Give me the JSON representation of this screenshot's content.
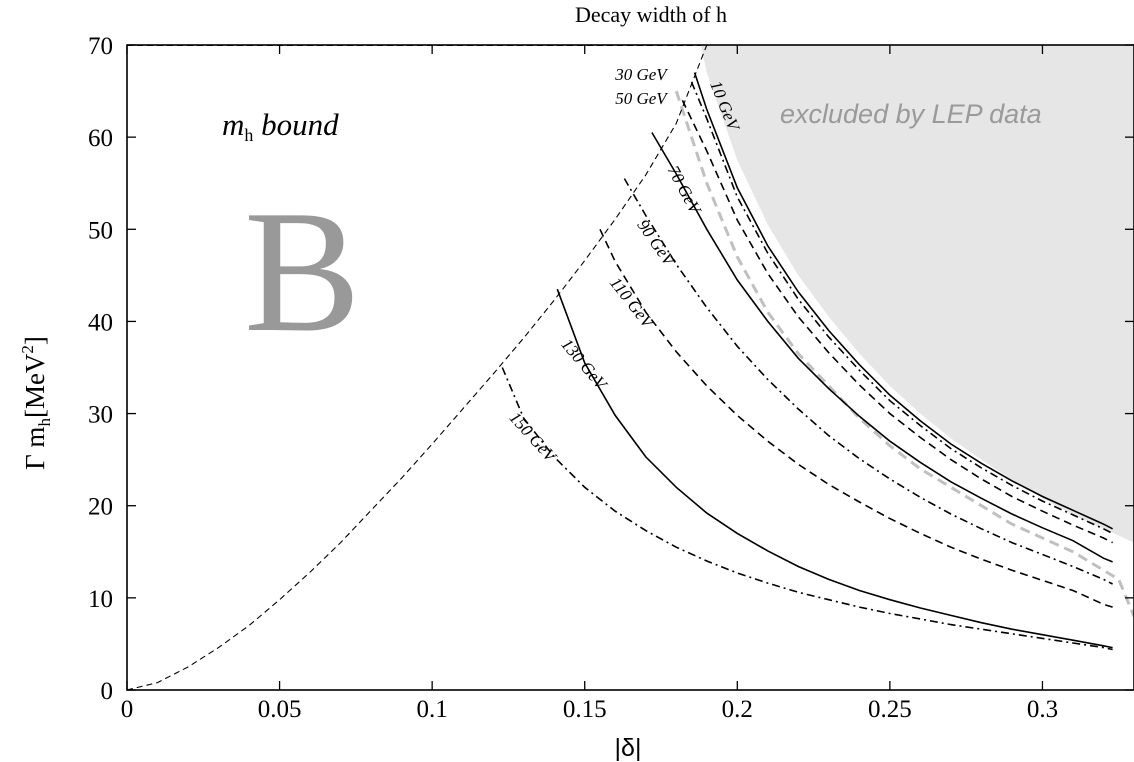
{
  "chart_data": {
    "type": "line",
    "title": "Decay width of h",
    "xlabel": "|δ|",
    "ylabel_main": "Γ m",
    "ylabel_sub": "h",
    "ylabel_unit": "[MeV",
    "ylabel_exp": "2",
    "ylabel_close": "]",
    "xlim": [
      0,
      0.33
    ],
    "ylim": [
      0,
      70
    ],
    "x_ticks": [
      0,
      0.05,
      0.1,
      0.15,
      0.2,
      0.25,
      0.3
    ],
    "x_tick_labels": [
      "0",
      "0.05",
      "0.1",
      "0.15",
      "0.2",
      "0.25",
      "0.3"
    ],
    "y_ticks": [
      0,
      10,
      20,
      30,
      40,
      50,
      60,
      70
    ],
    "y_tick_labels": [
      "0",
      "10",
      "20",
      "30",
      "40",
      "50",
      "60",
      "70"
    ],
    "grid": false,
    "legend": "none",
    "annotations": {
      "bound_main": "m",
      "bound_sub": "h",
      "bound_rest": " bound",
      "region_letter": "B",
      "excluded_text": "excluded by LEP data"
    },
    "colors": {
      "excluded_fill": "#e6e6e6",
      "excluded_text": "#9a9a9a",
      "region_letter": "#999999",
      "lep_boundary": "#c0c0c0"
    },
    "excluded_region": {
      "x": [
        0.188,
        0.19,
        0.2,
        0.21,
        0.22,
        0.23,
        0.24,
        0.25,
        0.26,
        0.27,
        0.28,
        0.29,
        0.3,
        0.31,
        0.32,
        0.33,
        0.33
      ],
      "y": [
        70,
        67,
        57.5,
        50.5,
        45,
        40.5,
        36.5,
        33,
        30,
        27.3,
        25,
        22.8,
        20.8,
        19,
        17.5,
        16,
        70
      ]
    },
    "lep_boundary": {
      "x": [
        0.18,
        0.19,
        0.2,
        0.21,
        0.22,
        0.23,
        0.24,
        0.25,
        0.26,
        0.27,
        0.28,
        0.29,
        0.3,
        0.31,
        0.32,
        0.325,
        0.33
      ],
      "y": [
        65,
        55,
        47,
        41,
        36.5,
        33,
        29.5,
        26.5,
        24,
        22,
        20,
        18,
        16.5,
        15,
        13,
        12,
        8
      ]
    },
    "envelope": {
      "x": [
        0,
        0.01,
        0.02,
        0.03,
        0.04,
        0.05,
        0.06,
        0.07,
        0.08,
        0.09,
        0.1,
        0.11,
        0.12,
        0.13,
        0.14,
        0.15,
        0.16,
        0.17,
        0.18,
        0.19
      ],
      "y": [
        0,
        0.8,
        2.5,
        4.6,
        7,
        9.8,
        12.8,
        16,
        19.5,
        23,
        26.7,
        30.5,
        34.3,
        38.2,
        42.3,
        46.6,
        51.1,
        55.9,
        61.5,
        70
      ]
    },
    "series": [
      {
        "label": "10 GeV",
        "style": "solid",
        "label_x": 0.191,
        "label_y": 65.8,
        "label_rot": 68,
        "x": [
          0.186,
          0.19,
          0.2,
          0.21,
          0.22,
          0.23,
          0.24,
          0.25,
          0.26,
          0.27,
          0.28,
          0.29,
          0.3,
          0.31,
          0.32,
          0.323
        ],
        "y": [
          67,
          63,
          54.5,
          48.2,
          43.2,
          39,
          35.3,
          32,
          29.2,
          26.7,
          24.6,
          22.7,
          21,
          19.5,
          18,
          17.5
        ]
      },
      {
        "label": "30 GeV",
        "style": "dashdot",
        "label_x": 0.16,
        "label_y": 66.2,
        "label_rot": 0,
        "x": [
          0.185,
          0.19,
          0.2,
          0.21,
          0.22,
          0.23,
          0.24,
          0.25,
          0.26,
          0.27,
          0.28,
          0.29,
          0.3,
          0.31,
          0.32,
          0.323
        ],
        "y": [
          66,
          62,
          53.5,
          47.4,
          42.4,
          38.3,
          34.7,
          31.4,
          28.7,
          26.2,
          24.1,
          22.2,
          20.5,
          19,
          17.5,
          17
        ]
      },
      {
        "label": "50 GeV",
        "style": "dashed",
        "label_x": 0.16,
        "label_y": 63.6,
        "label_rot": 0,
        "x": [
          0.182,
          0.19,
          0.2,
          0.21,
          0.22,
          0.23,
          0.24,
          0.25,
          0.26,
          0.27,
          0.28,
          0.29,
          0.3,
          0.31,
          0.32,
          0.323
        ],
        "y": [
          64,
          58.5,
          51,
          45.2,
          40.5,
          36.6,
          33.1,
          30,
          27.4,
          25,
          22.9,
          21,
          19.4,
          17.9,
          16.5,
          16
        ]
      },
      {
        "label": "70 GeV",
        "style": "solid",
        "label_x": 0.177,
        "label_y": 56.5,
        "label_rot": 62,
        "x": [
          0.172,
          0.18,
          0.19,
          0.2,
          0.21,
          0.22,
          0.23,
          0.24,
          0.25,
          0.26,
          0.27,
          0.28,
          0.29,
          0.3,
          0.31,
          0.32,
          0.323
        ],
        "y": [
          60.5,
          56,
          50,
          44.5,
          40,
          36,
          32.7,
          29.7,
          27,
          24.7,
          22.6,
          20.8,
          19.1,
          17.6,
          16.2,
          14.3,
          13.9
        ]
      },
      {
        "label": "90 GeV",
        "style": "dashdot",
        "label_x": 0.167,
        "label_y": 50.5,
        "label_rot": 55,
        "x": [
          0.163,
          0.17,
          0.18,
          0.19,
          0.2,
          0.21,
          0.22,
          0.23,
          0.24,
          0.25,
          0.26,
          0.27,
          0.28,
          0.29,
          0.3,
          0.31,
          0.32,
          0.323
        ],
        "y": [
          55.5,
          51.5,
          46.2,
          41.5,
          37.3,
          33.7,
          30.5,
          27.6,
          25.1,
          22.9,
          20.9,
          19.1,
          17.5,
          16,
          14.7,
          13.4,
          12,
          11.5
        ]
      },
      {
        "label": "110 GeV",
        "style": "dashed",
        "label_x": 0.158,
        "label_y": 44.2,
        "label_rot": 52,
        "x": [
          0.155,
          0.16,
          0.17,
          0.18,
          0.19,
          0.2,
          0.21,
          0.22,
          0.23,
          0.24,
          0.25,
          0.26,
          0.27,
          0.28,
          0.29,
          0.3,
          0.31,
          0.32,
          0.323
        ],
        "y": [
          50,
          46.5,
          41,
          36.7,
          33,
          29.8,
          27,
          24.5,
          22.3,
          20.4,
          18.6,
          17,
          15.5,
          14.2,
          13,
          11.9,
          10.8,
          9.3,
          9
        ]
      },
      {
        "label": "130 GeV",
        "style": "solid",
        "label_x": 0.142,
        "label_y": 37.5,
        "label_rot": 50,
        "x": [
          0.141,
          0.15,
          0.16,
          0.17,
          0.18,
          0.19,
          0.2,
          0.21,
          0.22,
          0.23,
          0.24,
          0.25,
          0.26,
          0.27,
          0.28,
          0.29,
          0.3,
          0.31,
          0.32,
          0.323
        ],
        "y": [
          43.5,
          35.5,
          29.8,
          25.3,
          22,
          19.2,
          17,
          15.1,
          13.4,
          12,
          10.8,
          9.8,
          8.9,
          8.1,
          7.3,
          6.6,
          6,
          5.4,
          4.8,
          4.6
        ]
      },
      {
        "label": "150 GeV",
        "style": "dashdot",
        "label_x": 0.125,
        "label_y": 29.5,
        "label_rot": 48,
        "x": [
          0.123,
          0.13,
          0.14,
          0.15,
          0.16,
          0.17,
          0.18,
          0.19,
          0.2,
          0.21,
          0.22,
          0.23,
          0.24,
          0.25,
          0.26,
          0.27,
          0.28,
          0.29,
          0.3,
          0.31,
          0.32,
          0.323
        ],
        "y": [
          35,
          29.5,
          25.3,
          22,
          19.4,
          17.3,
          15.5,
          14,
          12.7,
          11.6,
          10.6,
          9.8,
          9,
          8.3,
          7.7,
          7.1,
          6.6,
          6.1,
          5.6,
          5.1,
          4.6,
          4.4
        ]
      }
    ]
  }
}
